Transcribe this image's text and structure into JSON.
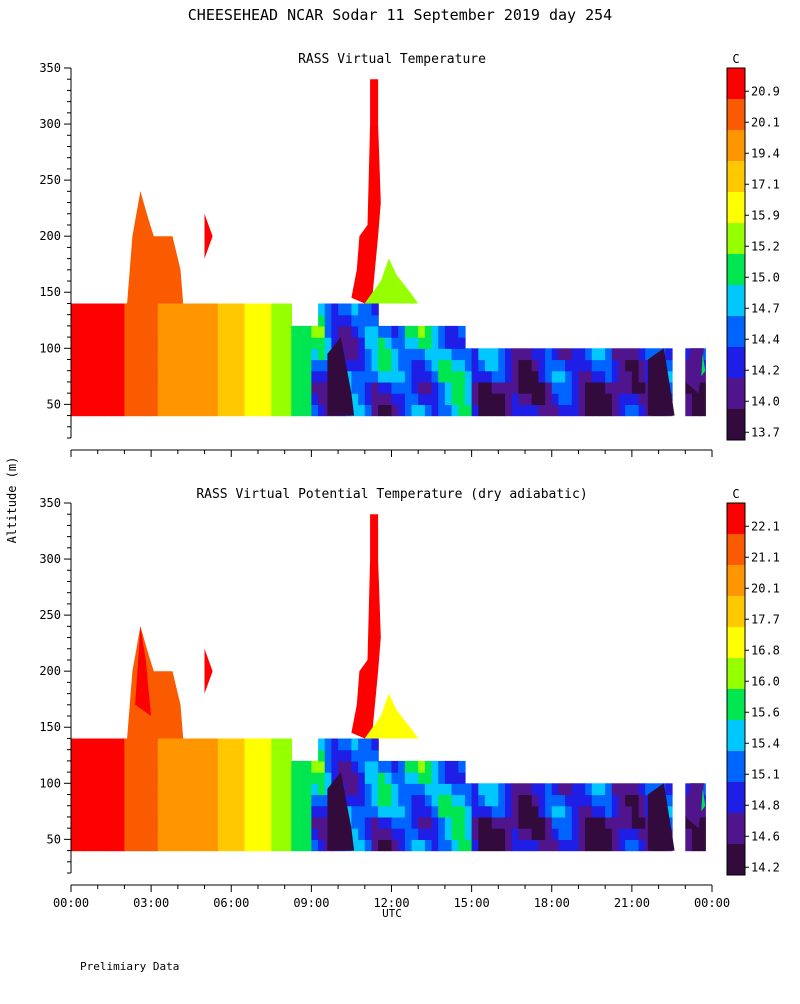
{
  "page": {
    "title": "CHEESEHEAD  NCAR Sodar  11 September 2019  day 254",
    "ylabel": "Altitude (m)",
    "xlabel": "UTC",
    "footnote": "Prelimiary Data"
  },
  "chart_data": [
    {
      "type": "heatmap",
      "title": "RASS Virtual Temperature",
      "colorbar_unit": "C",
      "colorbar_ticks": [
        "20.9",
        "20.1",
        "19.4",
        "17.1",
        "15.9",
        "15.2",
        "15.0",
        "14.7",
        "14.4",
        "14.2",
        "14.0",
        "13.7"
      ],
      "x_ticks": [],
      "xlim_hours": [
        0,
        24
      ],
      "ylim": [
        20,
        350
      ],
      "yticks": [
        50,
        100,
        150,
        200,
        250,
        300,
        350
      ],
      "xlabel": "",
      "ylabel": "Altitude (m)",
      "colors": [
        "#ff0000",
        "#fa5a00",
        "#ff9600",
        "#ffc800",
        "#ffff00",
        "#96ff00",
        "#00e650",
        "#00c8ff",
        "#0064ff",
        "#1e1ee6",
        "#50148c",
        "#320a3c"
      ],
      "approx_regions": [
        {
          "level": 0,
          "desc": "warm red",
          "polygon_data": [
            [
              0,
              40
            ],
            [
              0,
              140
            ],
            [
              0.7,
              140
            ],
            [
              1.8,
              140
            ],
            [
              1.8,
              40
            ]
          ]
        },
        {
          "level": 11,
          "desc": "coldest near surface",
          "polygon_data": [
            [
              9.5,
              40
            ],
            [
              9.5,
              100
            ],
            [
              10.5,
              90
            ],
            [
              10.5,
              40
            ]
          ]
        }
      ]
    },
    {
      "type": "heatmap",
      "title": "RASS Virtual Potential Temperature (dry adiabatic)",
      "colorbar_unit": "C",
      "colorbar_ticks": [
        "22.1",
        "21.1",
        "20.1",
        "17.7",
        "16.8",
        "16.0",
        "15.6",
        "15.4",
        "15.1",
        "14.8",
        "14.6",
        "14.2"
      ],
      "x_ticks": [
        "00:00",
        "03:00",
        "06:00",
        "09:00",
        "12:00",
        "15:00",
        "18:00",
        "21:00",
        "00:00"
      ],
      "xlim_hours": [
        0,
        24
      ],
      "ylim": [
        20,
        350
      ],
      "yticks": [
        50,
        100,
        150,
        200,
        250,
        300,
        350
      ],
      "xlabel": "UTC",
      "ylabel": "Altitude (m)",
      "colors": [
        "#ff0000",
        "#fa5a00",
        "#ff9600",
        "#ffc800",
        "#ffff00",
        "#96ff00",
        "#00e650",
        "#00c8ff",
        "#0064ff",
        "#1e1ee6",
        "#50148c",
        "#320a3c"
      ]
    }
  ]
}
